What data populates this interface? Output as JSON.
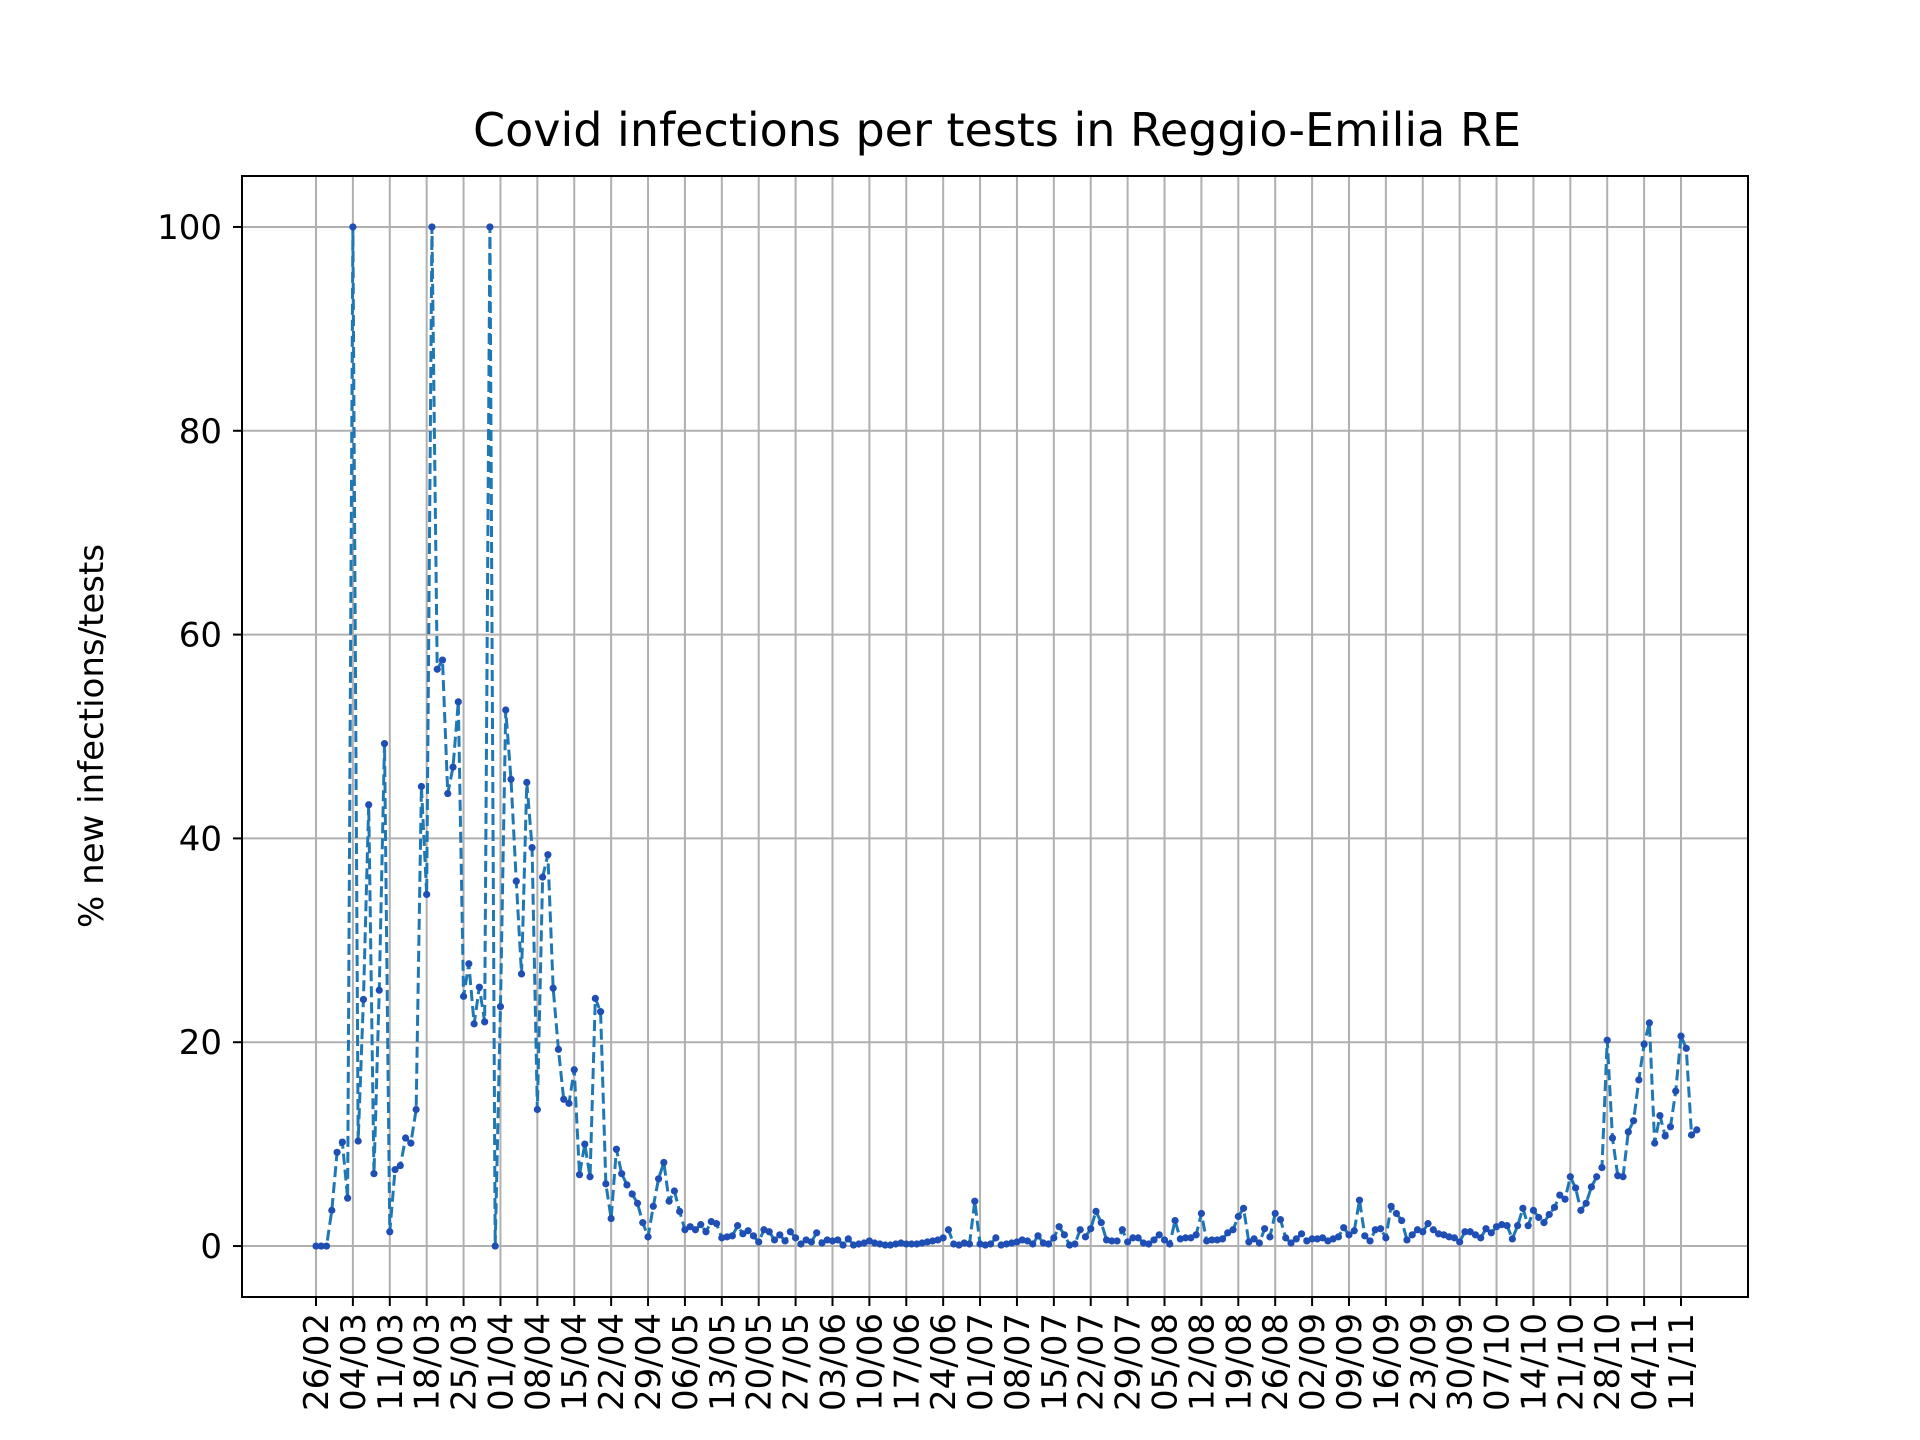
{
  "chart_data": {
    "type": "line",
    "title": "Covid infections per tests in Reggio-Emilia RE",
    "xlabel": "",
    "ylabel": "% new infections/tests",
    "ylim": [
      -5,
      105
    ],
    "yticks": [
      0,
      20,
      40,
      60,
      80,
      100
    ],
    "grid": true,
    "x_start": "26/02",
    "xtick_labels": [
      "26/02",
      "04/03",
      "11/03",
      "18/03",
      "25/03",
      "01/04",
      "08/04",
      "15/04",
      "22/04",
      "29/04",
      "06/05",
      "13/05",
      "20/05",
      "27/05",
      "03/06",
      "10/06",
      "17/06",
      "24/06",
      "01/07",
      "08/07",
      "15/07",
      "22/07",
      "29/07",
      "05/08",
      "12/08",
      "19/08",
      "26/08",
      "02/09",
      "09/09",
      "16/09",
      "23/09",
      "30/09",
      "07/10",
      "14/10",
      "21/10",
      "28/10",
      "04/11",
      "11/11"
    ],
    "series": [
      {
        "color": "#1f77b4",
        "marker_color": "#1f4fb4",
        "linestyle": "dashed",
        "values": [
          0,
          0,
          0,
          3.5,
          9.2,
          10.2,
          4.7,
          100,
          10.3,
          24.2,
          43.3,
          7.1,
          25.1,
          49.3,
          1.4,
          7.5,
          7.9,
          10.6,
          10.1,
          13.4,
          45.1,
          34.5,
          100,
          56.6,
          57.5,
          44.4,
          47.0,
          53.4,
          24.5,
          27.7,
          21.8,
          25.4,
          22.0,
          100,
          0,
          23.5,
          52.6,
          45.8,
          35.8,
          26.7,
          45.5,
          39.1,
          13.4,
          36.2,
          38.4,
          25.3,
          19.3,
          14.4,
          14.0,
          17.3,
          7.0,
          10.0,
          6.8,
          24.3,
          23.0,
          6.1,
          2.7,
          9.5,
          7.1,
          6.0,
          5.1,
          4.2,
          2.3,
          0.9,
          3.9,
          6.6,
          8.2,
          4.4,
          5.4,
          3.4,
          1.6,
          1.9,
          1.6,
          2.1,
          1.4,
          2.4,
          2.2,
          0.8,
          0.9,
          1.0,
          2.0,
          1.2,
          1.5,
          1.0,
          0.4,
          1.6,
          1.4,
          0.6,
          1.1,
          0.5,
          1.4,
          0.8,
          0.2,
          0.6,
          0.4,
          1.3,
          0.3,
          0.6,
          0.5,
          0.6,
          0.1,
          0.7,
          0.1,
          0.2,
          0.3,
          0.5,
          0.3,
          0.2,
          0.1,
          0.1,
          0.2,
          0.3,
          0.2,
          0.2,
          0.2,
          0.3,
          0.4,
          0.5,
          0.6,
          0.8,
          1.6,
          0.2,
          0.1,
          0.3,
          0.2,
          4.4,
          0.2,
          0.1,
          0.2,
          0.8,
          0.1,
          0.2,
          0.3,
          0.4,
          0.6,
          0.5,
          0.2,
          1.0,
          0.3,
          0.2,
          0.8,
          1.9,
          1.1,
          0.1,
          0.2,
          1.6,
          0.9,
          1.7,
          3.4,
          2.3,
          0.6,
          0.5,
          0.5,
          1.6,
          0.4,
          0.8,
          0.8,
          0.3,
          0.2,
          0.6,
          1.1,
          0.6,
          0.2,
          2.5,
          0.7,
          0.8,
          0.8,
          1.1,
          3.2,
          0.5,
          0.6,
          0.6,
          0.7,
          1.3,
          1.6,
          2.9,
          3.7,
          0.4,
          0.7,
          0.3,
          1.7,
          0.9,
          3.2,
          2.6,
          0.8,
          0.3,
          0.7,
          1.2,
          0.5,
          0.7,
          0.7,
          0.8,
          0.5,
          0.7,
          0.9,
          1.8,
          1.1,
          1.5,
          4.5,
          1.0,
          0.5,
          1.6,
          1.7,
          0.8,
          3.9,
          3.2,
          2.5,
          0.6,
          1.1,
          1.6,
          1.4,
          2.2,
          1.6,
          1.2,
          1.1,
          0.9,
          0.8,
          0.4,
          1.4,
          1.4,
          1.1,
          0.8,
          1.7,
          1.3,
          1.9,
          2.1,
          2.0,
          0.7,
          2.0,
          3.7,
          2.0,
          3.5,
          2.8,
          2.3,
          3.1,
          3.8,
          5.0,
          4.6,
          6.8,
          5.7,
          3.5,
          4.2,
          5.8,
          6.8,
          7.7,
          20.2,
          10.6,
          6.9,
          6.8,
          11.2,
          12.3,
          16.3,
          19.8,
          21.9,
          10.1,
          12.8,
          10.8,
          11.7,
          15.2,
          20.6,
          19.4,
          10.9,
          11.4
        ]
      }
    ]
  }
}
